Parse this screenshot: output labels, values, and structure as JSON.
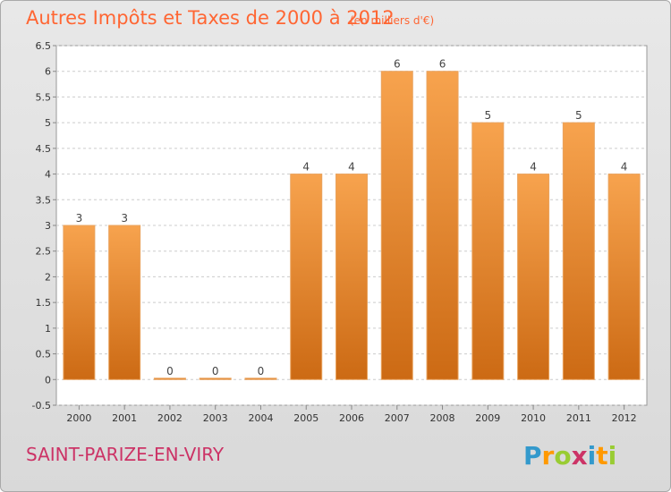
{
  "chart_data": {
    "type": "bar",
    "title": "Autres Impôts et Taxes de 2000 à 2012",
    "subtitle": "(en milliers d'€)",
    "categories": [
      "2000",
      "2001",
      "2002",
      "2003",
      "2004",
      "2005",
      "2006",
      "2007",
      "2008",
      "2009",
      "2010",
      "2011",
      "2012"
    ],
    "values": [
      3,
      3,
      0,
      0,
      0,
      4,
      4,
      6,
      6,
      5,
      4,
      5,
      4
    ],
    "value_labels": [
      "3",
      "3",
      "0",
      "0",
      "0",
      "4",
      "4",
      "6",
      "6",
      "5",
      "4",
      "5",
      "4"
    ],
    "y_ticks": [
      "-0.5",
      "0",
      "0.5",
      "1",
      "1.5",
      "2",
      "2.5",
      "3",
      "3.5",
      "4",
      "4.5",
      "5",
      "5.5",
      "6",
      "6.5"
    ],
    "ylim": [
      -0.5,
      6.5
    ],
    "grid": true,
    "bar_color": "#f08c2c"
  },
  "footer": {
    "town": "SAINT-PARIZE-EN-VIRY",
    "logo": "Proxiti"
  }
}
